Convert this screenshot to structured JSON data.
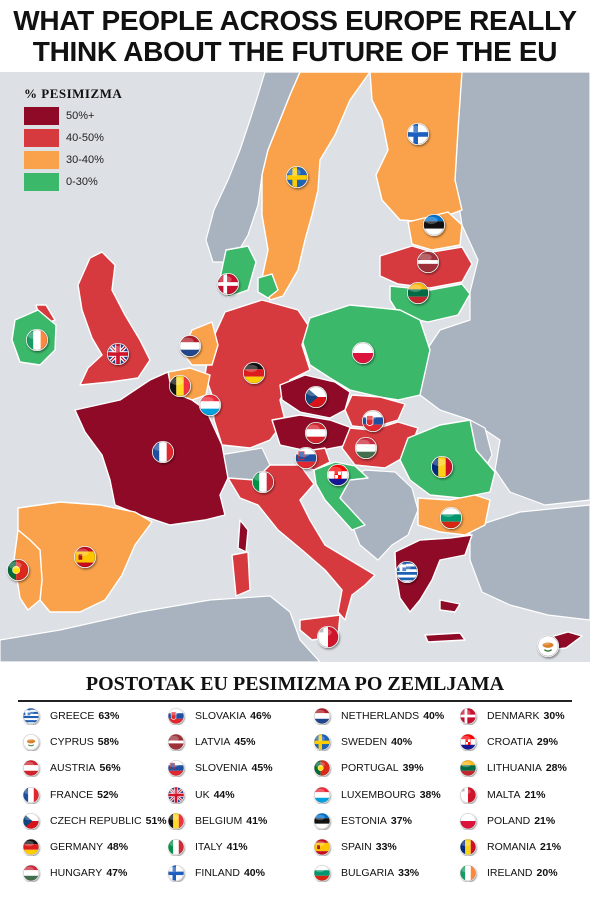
{
  "title": {
    "line1": "WHAT PEOPLE ACROSS EUROPE REALLY",
    "line2": "THINK ABOUT THE FUTURE OF THE EU"
  },
  "legend": {
    "title": "% PESIMIZMA",
    "items": [
      {
        "label": "50%+",
        "color": "#8e0a26"
      },
      {
        "label": "40-50%",
        "color": "#d63a3f"
      },
      {
        "label": "30-40%",
        "color": "#f9a24b"
      },
      {
        "label": "0-30%",
        "color": "#3cb86a"
      }
    ]
  },
  "colors": {
    "sea": "#dde0e5",
    "non_eu": "#a9b2bf",
    "border": "#ffffff"
  },
  "list_title": "POSTOTAK EU PESIMIZMA PO ZEMLJAMA",
  "columns": [
    [
      {
        "name": "GREECE",
        "pct": "63%",
        "flag": "greece-flag-icon"
      },
      {
        "name": "CYPRUS",
        "pct": "58%",
        "flag": "cyprus-flag-icon"
      },
      {
        "name": "AUSTRIA",
        "pct": "56%",
        "flag": "austria-flag-icon"
      },
      {
        "name": "FRANCE",
        "pct": "52%",
        "flag": "france-flag-icon"
      },
      {
        "name": "CZECH REPUBLIC",
        "pct": "51%",
        "flag": "czech-flag-icon"
      },
      {
        "name": "GERMANY",
        "pct": "48%",
        "flag": "germany-flag-icon"
      },
      {
        "name": "HUNGARY",
        "pct": "47%",
        "flag": "hungary-flag-icon"
      }
    ],
    [
      {
        "name": "SLOVAKIA",
        "pct": "46%",
        "flag": "slovakia-flag-icon"
      },
      {
        "name": "LATVIA",
        "pct": "45%",
        "flag": "latvia-flag-icon"
      },
      {
        "name": "SLOVENIA",
        "pct": "45%",
        "flag": "slovenia-flag-icon"
      },
      {
        "name": "UK",
        "pct": "44%",
        "flag": "uk-flag-icon"
      },
      {
        "name": "BELGIUM",
        "pct": "41%",
        "flag": "belgium-flag-icon"
      },
      {
        "name": "ITALY",
        "pct": "41%",
        "flag": "italy-flag-icon"
      },
      {
        "name": "FINLAND",
        "pct": "40%",
        "flag": "finland-flag-icon"
      }
    ],
    [
      {
        "name": "NETHERLANDS",
        "pct": "40%",
        "flag": "netherlands-flag-icon"
      },
      {
        "name": "SWEDEN",
        "pct": "40%",
        "flag": "sweden-flag-icon"
      },
      {
        "name": "PORTUGAL",
        "pct": "39%",
        "flag": "portugal-flag-icon"
      },
      {
        "name": "LUXEMBOURG",
        "pct": "38%",
        "flag": "luxembourg-flag-icon"
      },
      {
        "name": "ESTONIA",
        "pct": "37%",
        "flag": "estonia-flag-icon"
      },
      {
        "name": "SPAIN",
        "pct": "33%",
        "flag": "spain-flag-icon"
      },
      {
        "name": "BULGARIA",
        "pct": "33%",
        "flag": "bulgaria-flag-icon"
      }
    ],
    [
      {
        "name": "DENMARK",
        "pct": "30%",
        "flag": "denmark-flag-icon"
      },
      {
        "name": "CROATIA",
        "pct": "29%",
        "flag": "croatia-flag-icon"
      },
      {
        "name": "LITHUANIA",
        "pct": "28%",
        "flag": "lithuania-flag-icon"
      },
      {
        "name": "MALTA",
        "pct": "21%",
        "flag": "malta-flag-icon"
      },
      {
        "name": "POLAND",
        "pct": "21%",
        "flag": "poland-flag-icon"
      },
      {
        "name": "ROMANIA",
        "pct": "21%",
        "flag": "romania-flag-icon"
      },
      {
        "name": "IRELAND",
        "pct": "20%",
        "flag": "ireland-flag-icon"
      }
    ]
  ]
}
